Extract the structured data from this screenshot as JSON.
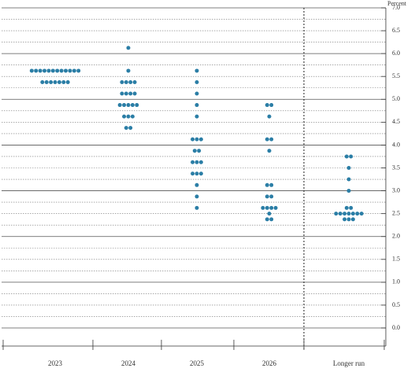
{
  "chart_data": {
    "type": "dot",
    "y_label": "Percent",
    "categories": [
      "2023",
      "2024",
      "2025",
      "2026",
      "Longer run"
    ],
    "color": "#2b7ea6",
    "ylim": [
      0,
      7
    ],
    "yticks": [
      {
        "value": 0,
        "label": "0.0"
      },
      {
        "value": 0.5,
        "label": "0.5"
      },
      {
        "value": 1,
        "label": "1.0"
      },
      {
        "value": 1.5,
        "label": "1.5"
      },
      {
        "value": 2,
        "label": "2.0"
      },
      {
        "value": 2.5,
        "label": "2.5"
      },
      {
        "value": 3,
        "label": "3.0"
      },
      {
        "value": 3.5,
        "label": "3.5"
      },
      {
        "value": 4,
        "label": "4.0"
      },
      {
        "value": 4.5,
        "label": "4.5"
      },
      {
        "value": 5,
        "label": "5.0"
      },
      {
        "value": 5.5,
        "label": "5.5"
      },
      {
        "value": 6,
        "label": "6.0"
      },
      {
        "value": 6.5,
        "label": "6.5"
      },
      {
        "value": 7,
        "label": "7.0"
      }
    ],
    "yticks_minor": [
      0.25,
      0.75,
      1.25,
      1.75,
      2.25,
      2.75,
      3.25,
      3.75,
      4.25,
      4.75,
      5.25,
      5.75,
      6.25,
      6.75
    ],
    "dots": [
      [
        {
          "rate": 5.625,
          "count": 12
        },
        {
          "rate": 5.375,
          "count": 7
        }
      ],
      [
        {
          "rate": 6.125,
          "count": 1
        },
        {
          "rate": 5.625,
          "count": 1
        },
        {
          "rate": 5.375,
          "count": 4
        },
        {
          "rate": 5.125,
          "count": 4
        },
        {
          "rate": 4.875,
          "count": 5
        },
        {
          "rate": 4.625,
          "count": 3
        },
        {
          "rate": 4.375,
          "count": 2
        }
      ],
      [
        {
          "rate": 5.625,
          "count": 1
        },
        {
          "rate": 5.375,
          "count": 1
        },
        {
          "rate": 5.125,
          "count": 1
        },
        {
          "rate": 4.875,
          "count": 1
        },
        {
          "rate": 4.625,
          "count": 1
        },
        {
          "rate": 4.125,
          "count": 3
        },
        {
          "rate": 3.875,
          "count": 2
        },
        {
          "rate": 3.625,
          "count": 3
        },
        {
          "rate": 3.375,
          "count": 3
        },
        {
          "rate": 3.125,
          "count": 1
        },
        {
          "rate": 2.875,
          "count": 1
        },
        {
          "rate": 2.625,
          "count": 1
        }
      ],
      [
        {
          "rate": 4.875,
          "count": 2
        },
        {
          "rate": 4.625,
          "count": 1
        },
        {
          "rate": 4.125,
          "count": 2
        },
        {
          "rate": 3.875,
          "count": 1
        },
        {
          "rate": 3.125,
          "count": 2
        },
        {
          "rate": 2.875,
          "count": 2
        },
        {
          "rate": 2.625,
          "count": 4
        },
        {
          "rate": 2.5,
          "count": 1
        },
        {
          "rate": 2.375,
          "count": 2
        }
      ],
      [
        {
          "rate": 3.75,
          "count": 2
        },
        {
          "rate": 3.5,
          "count": 1
        },
        {
          "rate": 3.25,
          "count": 1
        },
        {
          "rate": 3,
          "count": 1
        },
        {
          "rate": 2.625,
          "count": 2
        },
        {
          "rate": 2.5,
          "count": 7
        },
        {
          "rate": 2.375,
          "count": 3
        }
      ]
    ]
  }
}
